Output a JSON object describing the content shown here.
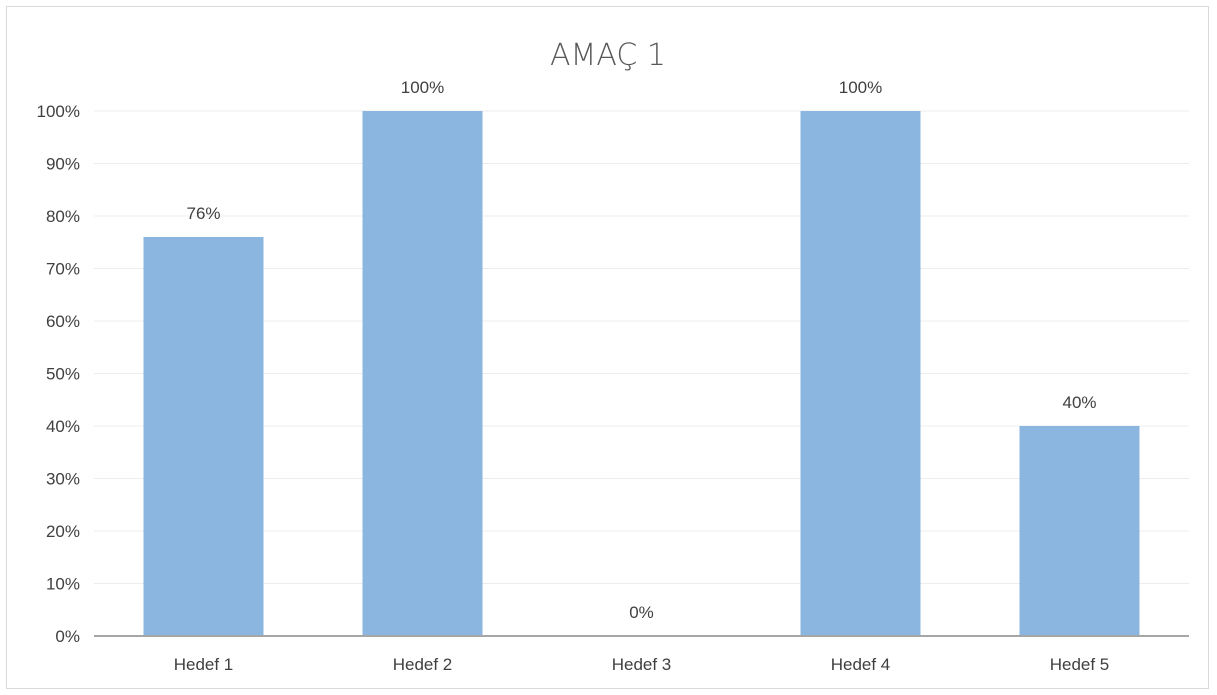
{
  "chart_data": {
    "type": "bar",
    "title": "AMAÇ 1",
    "xlabel": "",
    "ylabel": "",
    "categories": [
      "Hedef 1",
      "Hedef 2",
      "Hedef 3",
      "Hedef 4",
      "Hedef 5"
    ],
    "values": [
      0.76,
      1.0,
      0.0,
      1.0,
      0.4
    ],
    "data_labels": [
      "76%",
      "100%",
      "0%",
      "100%",
      "40%"
    ],
    "ylim": [
      0,
      1
    ],
    "yticks": [
      0,
      0.1,
      0.2,
      0.3,
      0.4,
      0.5,
      0.6,
      0.7,
      0.8,
      0.9,
      1.0
    ],
    "ytick_labels": [
      "0%",
      "10%",
      "20%",
      "30%",
      "40%",
      "50%",
      "60%",
      "70%",
      "80%",
      "90%",
      "100%"
    ],
    "grid": true,
    "legend": "none",
    "colors": {
      "bar": "#8bb6e0",
      "grid": "#ececec",
      "axis": "#a6a6a6",
      "text": "#404040",
      "title": "#595959"
    }
  }
}
